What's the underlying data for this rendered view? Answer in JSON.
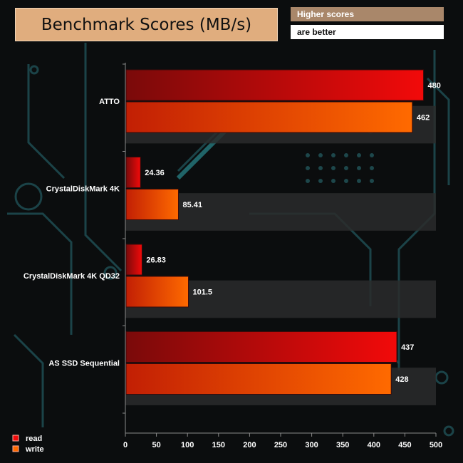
{
  "header": {
    "title": "Benchmark Scores (MB/s)",
    "note_line1": "Higher scores",
    "note_line2": "are better"
  },
  "colors": {
    "read_dark": "#7a0a0a",
    "read_light": "#f20a0a",
    "write_dark": "#c21f04",
    "write_light": "#ff6a00",
    "band": "#2a2b2c",
    "axis": "#8a8a8a",
    "circuit": "#1f4e52"
  },
  "chart_data": {
    "type": "bar",
    "orientation": "horizontal",
    "title": "Benchmark Scores (MB/s)",
    "categories": [
      "ATTO",
      "CrystalDiskMark 4K",
      "CrystalDiskMark 4K QD32",
      "AS SSD Sequential"
    ],
    "series": [
      {
        "name": "read",
        "values": [
          480,
          24.36,
          26.83,
          437
        ],
        "labels": [
          "480",
          "24.36",
          "26.83",
          "437"
        ]
      },
      {
        "name": "write",
        "values": [
          462,
          85.41,
          101.5,
          428
        ],
        "labels": [
          "462",
          "85.41",
          "101.5",
          "428"
        ]
      }
    ],
    "xlim": [
      0,
      500
    ],
    "xticks": [
      0,
      50,
      100,
      150,
      200,
      250,
      300,
      350,
      400,
      450,
      500
    ],
    "grid": false,
    "legend": "bottom-left"
  }
}
